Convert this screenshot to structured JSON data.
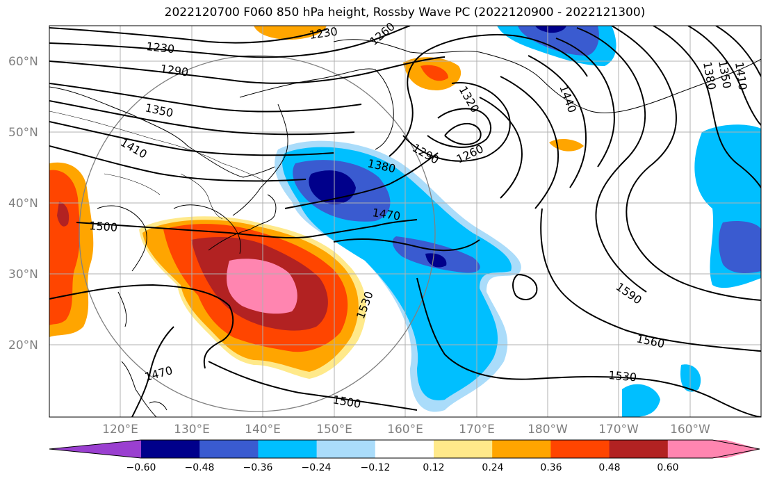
{
  "title": "2022120700 F060 850 hPa height, Rossby Wave PC (2022120900 - 2022121300)",
  "axes": {
    "lat_labels": [
      "60°N",
      "50°N",
      "40°N",
      "30°N",
      "20°N"
    ],
    "lon_labels": [
      "120°E",
      "130°E",
      "140°E",
      "150°E",
      "160°E",
      "170°E",
      "180°W",
      "170°W",
      "160°W"
    ]
  },
  "contour_labels": [
    {
      "id": "c1230a",
      "text": "1230"
    },
    {
      "id": "c1230b",
      "text": "1230"
    },
    {
      "id": "c1260a",
      "text": "1260"
    },
    {
      "id": "c1290a",
      "text": "1290"
    },
    {
      "id": "c1350a",
      "text": "1350"
    },
    {
      "id": "c1410a",
      "text": "1410"
    },
    {
      "id": "c1500a",
      "text": "1500"
    },
    {
      "id": "c1470a",
      "text": "1470"
    },
    {
      "id": "c1380a",
      "text": "1380"
    },
    {
      "id": "c1290b",
      "text": "1290"
    },
    {
      "id": "c1260b",
      "text": "1260"
    },
    {
      "id": "c1320a",
      "text": "1320"
    },
    {
      "id": "c1440a",
      "text": "1440"
    },
    {
      "id": "c1380b",
      "text": "1380"
    },
    {
      "id": "c1350b",
      "text": "1350"
    },
    {
      "id": "c1410b",
      "text": "1410"
    },
    {
      "id": "c1530a",
      "text": "1530"
    },
    {
      "id": "c1590a",
      "text": "1590"
    },
    {
      "id": "c1560a",
      "text": "1560"
    },
    {
      "id": "c1530b",
      "text": "1530"
    },
    {
      "id": "c1470b",
      "text": "1470"
    },
    {
      "id": "c1500b",
      "text": "1500"
    }
  ],
  "colorbar": {
    "labels": [
      "−0.60",
      "−0.48",
      "−0.36",
      "−0.24",
      "−0.12",
      "0.12",
      "0.24",
      "0.36",
      "0.48",
      "0.60"
    ],
    "colors": [
      "#9a3fd0",
      "#00008b",
      "#3a5bd0",
      "#00bfff",
      "#aadcfa",
      "#ffffff",
      "#ffe98a",
      "#ffa500",
      "#ff4500",
      "#b22222",
      "#ff85b0",
      "#ff85b0"
    ]
  },
  "map": {
    "land_color": "#ffffff",
    "grid_color": "#b0b0b0",
    "contour_color": "#000000"
  }
}
